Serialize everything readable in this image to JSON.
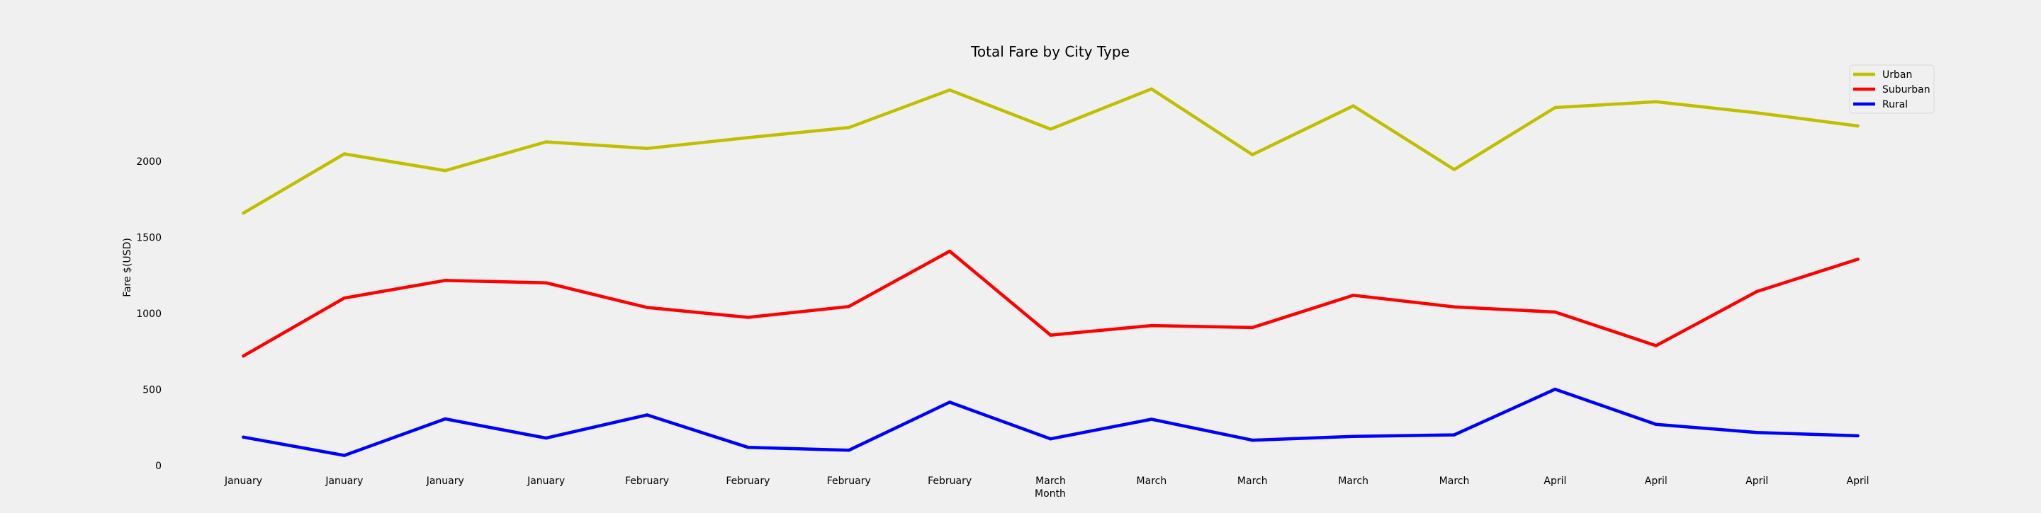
{
  "chart_data": {
    "type": "line",
    "title": "Total Fare by City Type",
    "xlabel": "Month",
    "ylabel": "Fare $(USD)",
    "categories": [
      "January",
      "January",
      "January",
      "January",
      "February",
      "February",
      "February",
      "February",
      "March",
      "March",
      "March",
      "March",
      "March",
      "April",
      "April",
      "April",
      "April"
    ],
    "yticks": [
      0,
      500,
      1000,
      1500,
      2000
    ],
    "ylim": [
      0,
      2520
    ],
    "grid": false,
    "legend_position": "top-right",
    "series": [
      {
        "name": "Urban",
        "color": "#bfbf00",
        "values": [
          1661,
          2050,
          1940,
          2129,
          2086,
          2157,
          2223,
          2470,
          2213,
          2477,
          2045,
          2366,
          1947,
          2355,
          2393,
          2320,
          2234
        ]
      },
      {
        "name": "Suburban",
        "color": "#ff0000",
        "values": [
          721,
          1102,
          1218,
          1202,
          1040,
          975,
          1046,
          1410,
          858,
          921,
          908,
          1120,
          1044,
          1010,
          789,
          1145,
          1357
        ]
      },
      {
        "name": "Rural",
        "color": "#0000ff",
        "values": [
          187,
          67,
          307,
          181,
          333,
          120,
          101,
          417,
          176,
          305,
          167,
          192,
          202,
          502,
          271,
          218,
          196
        ]
      }
    ]
  }
}
